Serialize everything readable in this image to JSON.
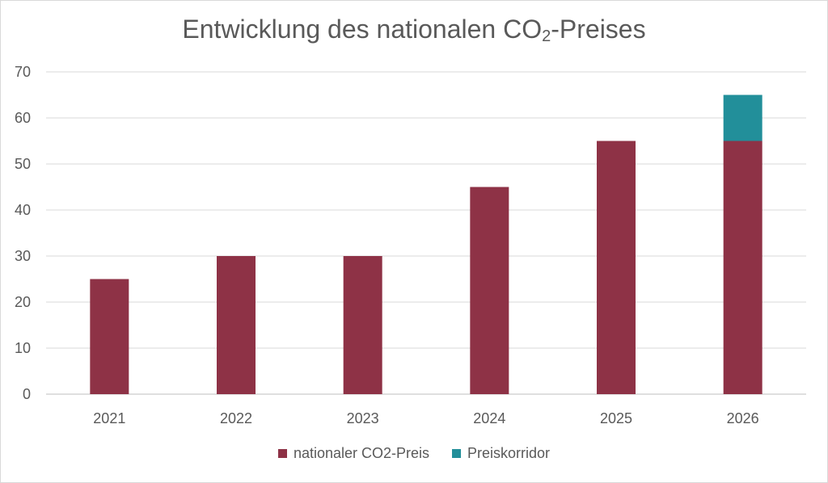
{
  "chart_data": {
    "type": "bar",
    "stacked": true,
    "title_main": "Entwicklung des nationalen CO",
    "title_sub": "2",
    "title_tail": "-Preises",
    "categories": [
      "2021",
      "2022",
      "2023",
      "2024",
      "2025",
      "2026"
    ],
    "series": [
      {
        "name": "nationaler CO2-Preis",
        "values": [
          25,
          30,
          30,
          45,
          55,
          55
        ],
        "color": "#8e3246"
      },
      {
        "name": "Preiskorridor",
        "values": [
          0,
          0,
          0,
          0,
          0,
          10
        ],
        "color": "#228f9a"
      }
    ],
    "ylim": [
      0,
      70
    ],
    "yticks": [
      "0",
      "10",
      "20",
      "30",
      "40",
      "50",
      "60",
      "70"
    ],
    "grid": true,
    "legend_position": "bottom"
  }
}
